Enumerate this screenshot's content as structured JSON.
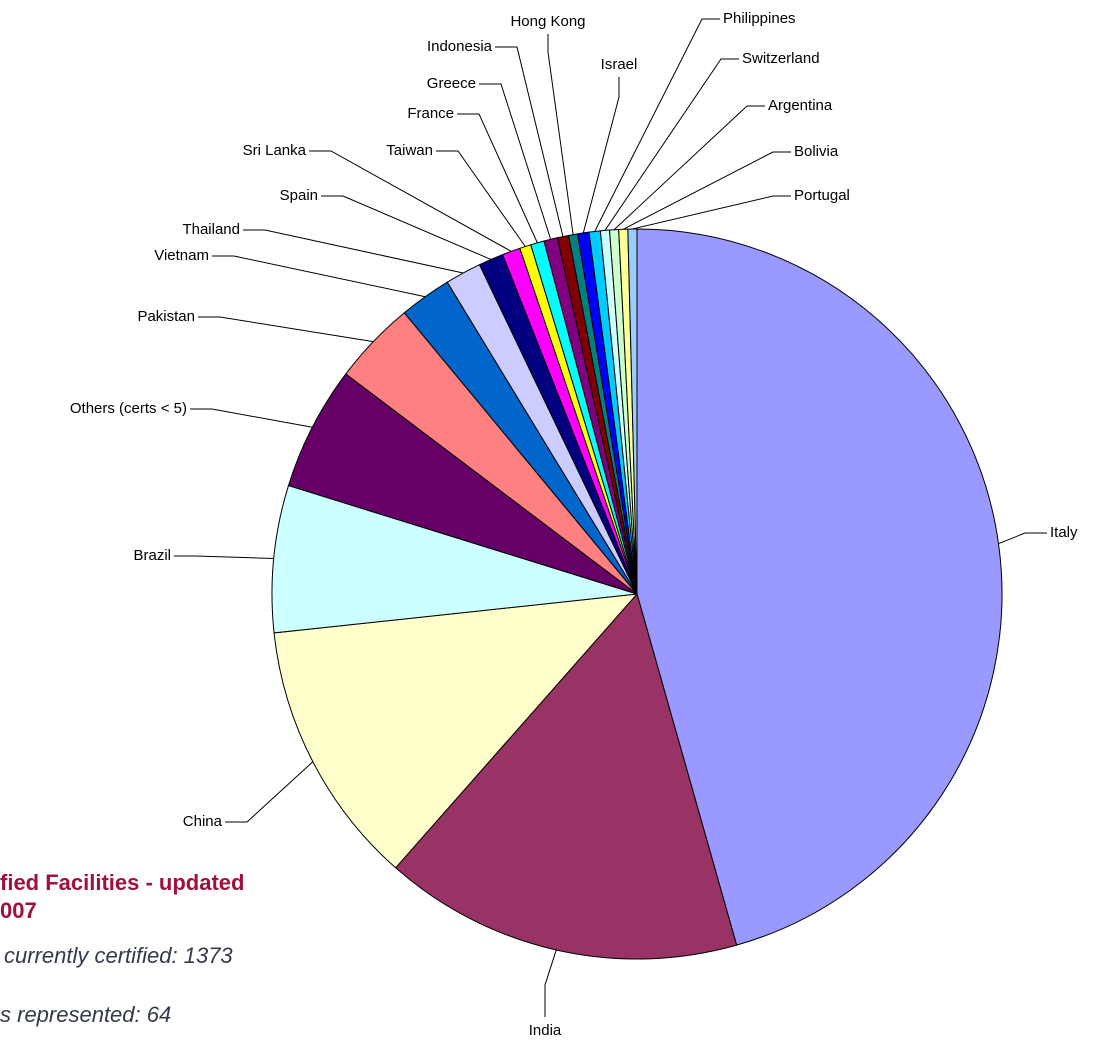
{
  "chart_data": {
    "type": "pie",
    "categories": [
      "Italy",
      "India",
      "China",
      "Brazil",
      "Others (certs < 5)",
      "Pakistan",
      "Vietnam",
      "Thailand",
      "Spain",
      "Sri Lanka",
      "Taiwan",
      "France",
      "Greece",
      "Indonesia",
      "Hong Kong",
      "Israel",
      "Philippines",
      "Switzerland",
      "Argentina",
      "Bolivia",
      "Portugal"
    ],
    "values": [
      45.6,
      15.9,
      11.8,
      6.5,
      5.5,
      3.7,
      2.3,
      1.6,
      1.1,
      0.8,
      0.5,
      0.6,
      0.6,
      0.5,
      0.4,
      0.5,
      0.5,
      0.4,
      0.4,
      0.4,
      0.4
    ],
    "colors": [
      "#9999ff",
      "#993366",
      "#ffffcc",
      "#ccffff",
      "#660066",
      "#ff8080",
      "#0066cc",
      "#ccccff",
      "#000080",
      "#ff00ff",
      "#ffff00",
      "#00ffff",
      "#800080",
      "#800000",
      "#008080",
      "#0000ff",
      "#00ccff",
      "#ccffff",
      "#ccffcc",
      "#ffff99",
      "#99ccff"
    ]
  },
  "notes": [
    "fied Facilities - updated",
    "007",
    "currently certified: 1373",
    "s represented: 64"
  ]
}
